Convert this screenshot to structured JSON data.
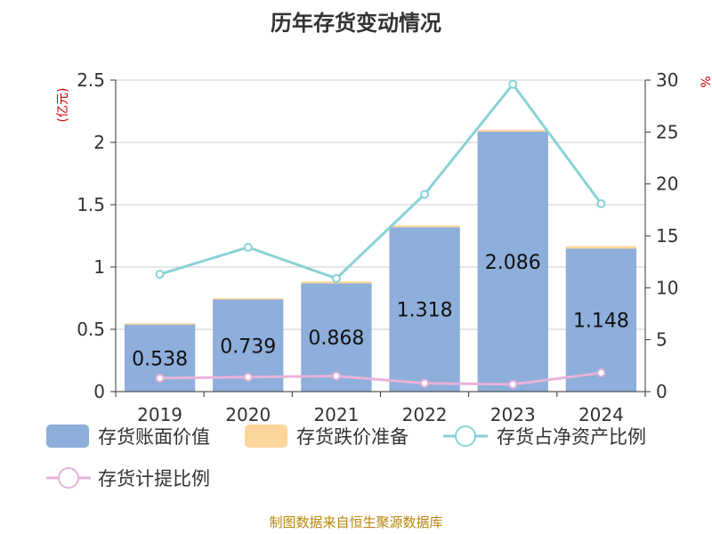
{
  "chart_data": {
    "type": "bar",
    "title": "历年存货变动情况",
    "y_left_unit": "(亿元)",
    "y_right_unit": "%",
    "categories": [
      "2019",
      "2020",
      "2021",
      "2022",
      "2023",
      "2024"
    ],
    "y_left_ticks": [
      "0",
      "0.5",
      "1",
      "1.5",
      "2",
      "2.5"
    ],
    "y_right_ticks": [
      "0",
      "5",
      "10",
      "15",
      "20",
      "25",
      "30"
    ],
    "y_left_lim": [
      0,
      2.5
    ],
    "y_right_lim": [
      0,
      30
    ],
    "grid": true,
    "legend_position": "bottom",
    "series": [
      {
        "name": "存货账面价值",
        "type": "bar",
        "stack": "inv",
        "axis": "left",
        "color": "#8eaedb",
        "values": [
          0.538,
          0.739,
          0.868,
          1.318,
          2.086,
          1.148
        ],
        "labels": [
          "0.538",
          "0.739",
          "0.868",
          "1.318",
          "2.086",
          "1.148"
        ]
      },
      {
        "name": "存货跌价准备",
        "type": "bar",
        "stack": "inv",
        "axis": "left",
        "color": "#fcd59b",
        "values": [
          0.01,
          0.01,
          0.015,
          0.015,
          0.015,
          0.02
        ]
      },
      {
        "name": "存货占净资产比例",
        "type": "line",
        "axis": "right",
        "color": "#89d2d6",
        "values": [
          11.3,
          13.9,
          10.9,
          19.0,
          29.6,
          18.1
        ]
      },
      {
        "name": "存货计提比例",
        "type": "line",
        "axis": "right",
        "color": "#e6b3d9",
        "values": [
          1.3,
          1.4,
          1.5,
          0.8,
          0.7,
          1.8
        ]
      }
    ],
    "source": "制图数据来自恒生聚源数据库"
  }
}
